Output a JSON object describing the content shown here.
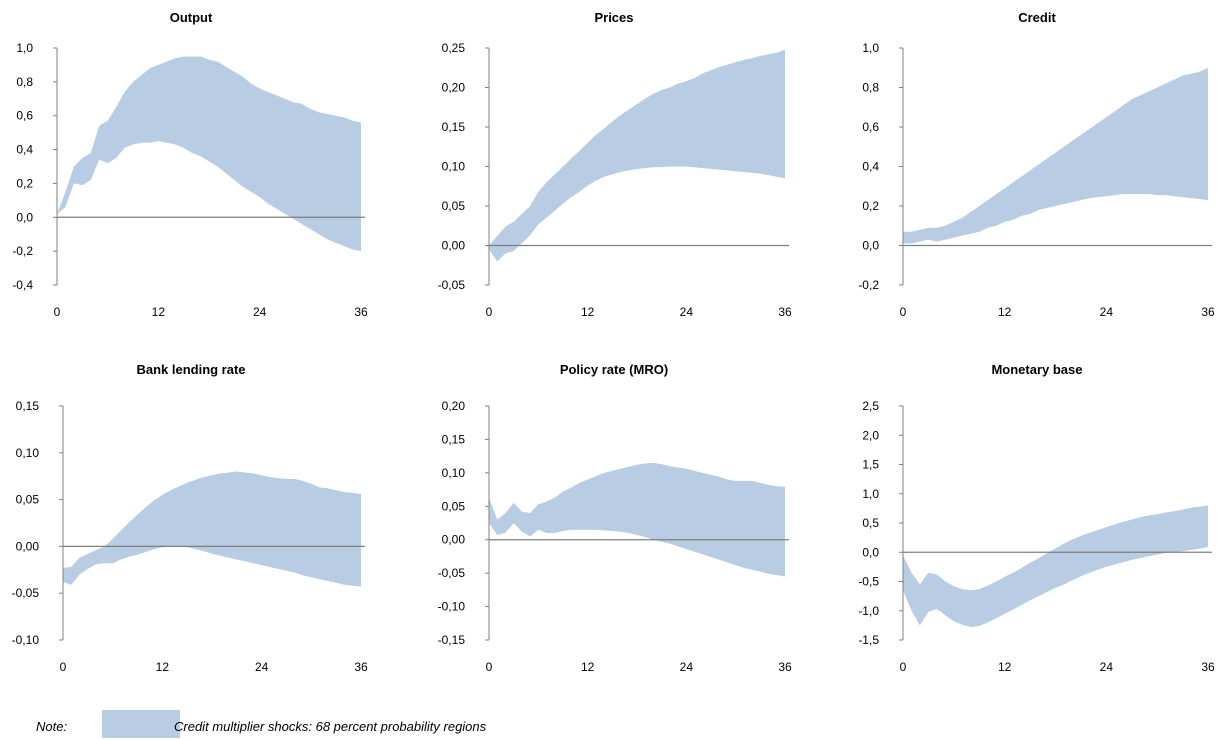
{
  "colors": {
    "band": "#b8cce4",
    "axis": "#7f7f7f",
    "zero_line": "#7f7f7f"
  },
  "note": {
    "label": "Note:",
    "text": "Credit multiplier shocks: 68 percent probability regions"
  },
  "chart_data": [
    {
      "type": "area",
      "title": "Output",
      "x_ticks": [
        0,
        12,
        24,
        36
      ],
      "y_ticks": [
        "1,0",
        "0,8",
        "0,6",
        "0,4",
        "0,2",
        "0,0",
        "-0,2",
        "-0,4"
      ],
      "ylim": [
        -0.4,
        1.0
      ],
      "xlim": [
        0,
        36
      ],
      "band": {
        "x": [
          0,
          1,
          2,
          3,
          4,
          5,
          6,
          7,
          8,
          9,
          10,
          11,
          12,
          13,
          14,
          15,
          16,
          17,
          18,
          19,
          20,
          21,
          22,
          23,
          24,
          25,
          26,
          27,
          28,
          29,
          30,
          31,
          32,
          33,
          34,
          35,
          36
        ],
        "upper": [
          0.02,
          0.15,
          0.3,
          0.35,
          0.38,
          0.54,
          0.57,
          0.65,
          0.74,
          0.8,
          0.84,
          0.88,
          0.9,
          0.92,
          0.94,
          0.95,
          0.95,
          0.95,
          0.93,
          0.92,
          0.89,
          0.86,
          0.83,
          0.79,
          0.76,
          0.74,
          0.72,
          0.7,
          0.68,
          0.67,
          0.64,
          0.62,
          0.61,
          0.6,
          0.59,
          0.57,
          0.56
        ],
        "lower": [
          0.02,
          0.06,
          0.2,
          0.19,
          0.22,
          0.34,
          0.32,
          0.35,
          0.41,
          0.43,
          0.44,
          0.44,
          0.45,
          0.44,
          0.43,
          0.41,
          0.38,
          0.36,
          0.33,
          0.3,
          0.26,
          0.22,
          0.18,
          0.15,
          0.12,
          0.08,
          0.05,
          0.02,
          -0.01,
          -0.04,
          -0.07,
          -0.1,
          -0.13,
          -0.15,
          -0.17,
          -0.19,
          -0.2
        ]
      }
    },
    {
      "type": "area",
      "title": "Prices",
      "x_ticks": [
        0,
        12,
        24,
        36
      ],
      "y_ticks": [
        "0,25",
        "0,20",
        "0,15",
        "0,10",
        "0,05",
        "0,00",
        "-0,05"
      ],
      "ylim": [
        -0.05,
        0.25
      ],
      "xlim": [
        0,
        36
      ],
      "band": {
        "x": [
          0,
          1,
          2,
          3,
          4,
          5,
          6,
          7,
          8,
          9,
          10,
          11,
          12,
          13,
          14,
          15,
          16,
          17,
          18,
          19,
          20,
          21,
          22,
          23,
          24,
          25,
          26,
          27,
          28,
          29,
          30,
          31,
          32,
          33,
          34,
          35,
          36
        ],
        "upper": [
          0.0,
          0.012,
          0.024,
          0.03,
          0.04,
          0.05,
          0.068,
          0.08,
          0.09,
          0.1,
          0.11,
          0.12,
          0.13,
          0.14,
          0.148,
          0.157,
          0.165,
          0.172,
          0.179,
          0.186,
          0.192,
          0.197,
          0.2,
          0.205,
          0.208,
          0.212,
          0.218,
          0.222,
          0.226,
          0.229,
          0.232,
          0.235,
          0.237,
          0.24,
          0.242,
          0.244,
          0.248
        ],
        "lower": [
          -0.005,
          -0.02,
          -0.01,
          -0.007,
          0.003,
          0.013,
          0.027,
          0.035,
          0.044,
          0.053,
          0.061,
          0.068,
          0.076,
          0.082,
          0.087,
          0.09,
          0.093,
          0.095,
          0.097,
          0.098,
          0.099,
          0.099,
          0.1,
          0.1,
          0.1,
          0.099,
          0.098,
          0.097,
          0.096,
          0.095,
          0.094,
          0.093,
          0.092,
          0.091,
          0.089,
          0.087,
          0.085
        ]
      }
    },
    {
      "type": "area",
      "title": "Credit",
      "x_ticks": [
        0,
        12,
        24,
        36
      ],
      "y_ticks": [
        "1,0",
        "0,8",
        "0,6",
        "0,4",
        "0,2",
        "0,0",
        "-0,2"
      ],
      "ylim": [
        -0.2,
        1.0
      ],
      "xlim": [
        0,
        36
      ],
      "band": {
        "x": [
          0,
          1,
          2,
          3,
          4,
          5,
          6,
          7,
          8,
          9,
          10,
          11,
          12,
          13,
          14,
          15,
          16,
          17,
          18,
          19,
          20,
          21,
          22,
          23,
          24,
          25,
          26,
          27,
          28,
          29,
          30,
          31,
          32,
          33,
          34,
          35,
          36
        ],
        "upper": [
          0.07,
          0.07,
          0.08,
          0.09,
          0.09,
          0.1,
          0.12,
          0.14,
          0.17,
          0.2,
          0.23,
          0.26,
          0.29,
          0.32,
          0.35,
          0.38,
          0.41,
          0.44,
          0.47,
          0.5,
          0.53,
          0.56,
          0.59,
          0.62,
          0.65,
          0.68,
          0.71,
          0.74,
          0.76,
          0.78,
          0.8,
          0.82,
          0.84,
          0.86,
          0.87,
          0.88,
          0.9
        ],
        "lower": [
          0.01,
          0.01,
          0.02,
          0.03,
          0.02,
          0.03,
          0.04,
          0.05,
          0.06,
          0.07,
          0.09,
          0.1,
          0.12,
          0.13,
          0.15,
          0.16,
          0.18,
          0.19,
          0.2,
          0.21,
          0.22,
          0.23,
          0.24,
          0.245,
          0.25,
          0.255,
          0.26,
          0.26,
          0.26,
          0.26,
          0.255,
          0.255,
          0.25,
          0.245,
          0.24,
          0.235,
          0.23
        ]
      }
    },
    {
      "type": "area",
      "title": "Bank lending rate",
      "x_ticks": [
        0,
        12,
        24,
        36
      ],
      "y_ticks": [
        "0,15",
        "0,10",
        "0,05",
        "0,00",
        "-0,05",
        "-0,10"
      ],
      "ylim": [
        -0.1,
        0.15
      ],
      "xlim": [
        0,
        36
      ],
      "band": {
        "x": [
          0,
          1,
          2,
          3,
          4,
          5,
          6,
          7,
          8,
          9,
          10,
          11,
          12,
          13,
          14,
          15,
          16,
          17,
          18,
          19,
          20,
          21,
          22,
          23,
          24,
          25,
          26,
          27,
          28,
          29,
          30,
          31,
          32,
          33,
          34,
          35,
          36
        ],
        "upper": [
          -0.023,
          -0.022,
          -0.012,
          -0.008,
          -0.004,
          0.0,
          0.008,
          0.017,
          0.026,
          0.034,
          0.042,
          0.049,
          0.055,
          0.06,
          0.064,
          0.068,
          0.071,
          0.074,
          0.076,
          0.078,
          0.079,
          0.08,
          0.079,
          0.078,
          0.076,
          0.074,
          0.073,
          0.072,
          0.072,
          0.07,
          0.067,
          0.063,
          0.062,
          0.06,
          0.058,
          0.057,
          0.056
        ],
        "lower": [
          -0.038,
          -0.041,
          -0.03,
          -0.024,
          -0.019,
          -0.018,
          -0.018,
          -0.014,
          -0.011,
          -0.009,
          -0.006,
          -0.003,
          -0.001,
          0.0,
          0.0,
          -0.001,
          -0.003,
          -0.005,
          -0.008,
          -0.01,
          -0.012,
          -0.014,
          -0.016,
          -0.018,
          -0.02,
          -0.022,
          -0.024,
          -0.026,
          -0.028,
          -0.031,
          -0.033,
          -0.035,
          -0.037,
          -0.039,
          -0.041,
          -0.042,
          -0.043
        ]
      }
    },
    {
      "type": "area",
      "title": "Policy rate (MRO)",
      "x_ticks": [
        0,
        12,
        24,
        36
      ],
      "y_ticks": [
        "0,20",
        "0,15",
        "0,10",
        "0,05",
        "0,00",
        "-0,05",
        "-0,10",
        "-0,15"
      ],
      "ylim": [
        -0.15,
        0.2
      ],
      "xlim": [
        0,
        36
      ],
      "band": {
        "x": [
          0,
          1,
          2,
          3,
          4,
          5,
          6,
          7,
          8,
          9,
          10,
          11,
          12,
          13,
          14,
          15,
          16,
          17,
          18,
          19,
          20,
          21,
          22,
          23,
          24,
          25,
          26,
          27,
          28,
          29,
          30,
          31,
          32,
          33,
          34,
          35,
          36
        ],
        "upper": [
          0.063,
          0.03,
          0.04,
          0.055,
          0.042,
          0.04,
          0.053,
          0.057,
          0.063,
          0.072,
          0.078,
          0.085,
          0.09,
          0.095,
          0.1,
          0.103,
          0.106,
          0.109,
          0.112,
          0.114,
          0.115,
          0.113,
          0.11,
          0.108,
          0.106,
          0.103,
          0.1,
          0.097,
          0.094,
          0.09,
          0.088,
          0.088,
          0.088,
          0.085,
          0.082,
          0.08,
          0.079
        ],
        "lower": [
          0.025,
          0.007,
          0.01,
          0.025,
          0.012,
          0.005,
          0.015,
          0.01,
          0.01,
          0.013,
          0.015,
          0.015,
          0.015,
          0.015,
          0.014,
          0.013,
          0.012,
          0.01,
          0.007,
          0.004,
          0.0,
          -0.003,
          -0.006,
          -0.01,
          -0.014,
          -0.018,
          -0.022,
          -0.026,
          -0.03,
          -0.034,
          -0.038,
          -0.042,
          -0.045,
          -0.048,
          -0.051,
          -0.053,
          -0.055
        ]
      }
    },
    {
      "type": "area",
      "title": "Monetary base",
      "x_ticks": [
        0,
        12,
        24,
        36
      ],
      "y_ticks": [
        "2,5",
        "2,0",
        "1,5",
        "1,0",
        "0,5",
        "0,0",
        "-0,5",
        "-1,0",
        "-1,5"
      ],
      "ylim": [
        -1.5,
        2.5
      ],
      "xlim": [
        0,
        36
      ],
      "band": {
        "x": [
          0,
          1,
          2,
          3,
          4,
          5,
          6,
          7,
          8,
          9,
          10,
          11,
          12,
          13,
          14,
          15,
          16,
          17,
          18,
          19,
          20,
          21,
          22,
          23,
          24,
          25,
          26,
          27,
          28,
          29,
          30,
          31,
          32,
          33,
          34,
          35,
          36
        ],
        "upper": [
          -0.05,
          -0.35,
          -0.55,
          -0.35,
          -0.38,
          -0.5,
          -0.58,
          -0.63,
          -0.65,
          -0.63,
          -0.57,
          -0.5,
          -0.42,
          -0.35,
          -0.27,
          -0.18,
          -0.1,
          -0.02,
          0.07,
          0.15,
          0.22,
          0.28,
          0.33,
          0.38,
          0.43,
          0.48,
          0.52,
          0.56,
          0.6,
          0.63,
          0.65,
          0.68,
          0.7,
          0.73,
          0.76,
          0.78,
          0.8
        ],
        "lower": [
          -0.65,
          -1.0,
          -1.25,
          -1.02,
          -0.97,
          -1.08,
          -1.18,
          -1.24,
          -1.28,
          -1.26,
          -1.2,
          -1.13,
          -1.05,
          -0.98,
          -0.9,
          -0.82,
          -0.75,
          -0.68,
          -0.61,
          -0.55,
          -0.48,
          -0.41,
          -0.35,
          -0.3,
          -0.25,
          -0.21,
          -0.17,
          -0.13,
          -0.1,
          -0.07,
          -0.04,
          -0.01,
          0.0,
          0.02,
          0.04,
          0.06,
          0.09
        ]
      }
    }
  ]
}
